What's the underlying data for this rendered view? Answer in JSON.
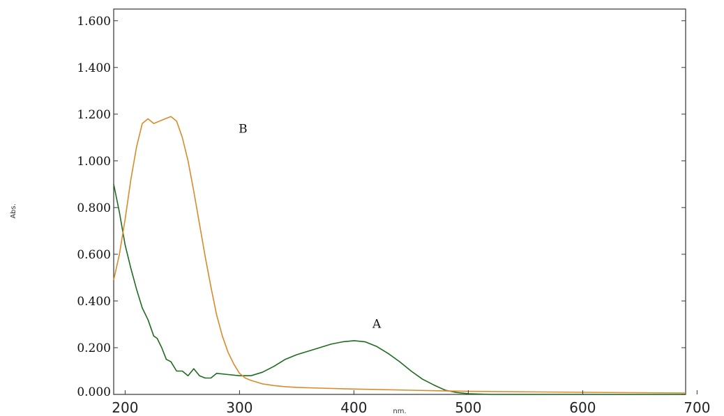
{
  "chart_data": {
    "type": "line",
    "title": "",
    "xlabel": "nm.",
    "ylabel": "Abs.",
    "xlim": [
      190,
      690
    ],
    "ylim": [
      0,
      1.65
    ],
    "x_ticks": [
      200,
      300,
      400,
      500,
      600,
      700
    ],
    "x_tick_labels": [
      "200",
      "300",
      "400",
      "500",
      "600",
      "700"
    ],
    "y_ticks": [
      0,
      0.2,
      0.4,
      0.6,
      0.8,
      1.0,
      1.2,
      1.4,
      1.6
    ],
    "y_tick_labels": [
      "0.000",
      "0.200",
      "0.400",
      "0.600",
      "0.800",
      "1.000",
      "1.200",
      "1.400",
      "1.600"
    ],
    "grid": false,
    "series": [
      {
        "name": "A",
        "color": "#1e6b1e",
        "x": [
          190,
          195,
          200,
          205,
          210,
          215,
          220,
          225,
          228,
          232,
          236,
          240,
          245,
          250,
          255,
          260,
          265,
          270,
          275,
          280,
          290,
          300,
          310,
          320,
          330,
          340,
          350,
          360,
          370,
          380,
          390,
          400,
          410,
          420,
          430,
          440,
          450,
          460,
          470,
          480,
          490,
          500,
          520,
          550,
          600,
          650,
          690
        ],
        "y": [
          0.9,
          0.78,
          0.64,
          0.54,
          0.45,
          0.37,
          0.32,
          0.25,
          0.24,
          0.2,
          0.15,
          0.14,
          0.1,
          0.1,
          0.08,
          0.11,
          0.08,
          0.07,
          0.07,
          0.09,
          0.085,
          0.08,
          0.08,
          0.095,
          0.12,
          0.15,
          0.17,
          0.185,
          0.2,
          0.215,
          0.225,
          0.23,
          0.225,
          0.205,
          0.175,
          0.14,
          0.1,
          0.065,
          0.04,
          0.018,
          0.008,
          0.003,
          0.0,
          0.0,
          0.0,
          0.0,
          0.0
        ]
      },
      {
        "name": "B",
        "color": "#d98a2b",
        "x": [
          190,
          195,
          200,
          205,
          210,
          215,
          220,
          225,
          230,
          235,
          240,
          245,
          250,
          255,
          260,
          265,
          270,
          275,
          280,
          285,
          290,
          295,
          300,
          305,
          310,
          320,
          330,
          340,
          350,
          370,
          400,
          450,
          500,
          600,
          690
        ],
        "y": [
          0.49,
          0.6,
          0.75,
          0.92,
          1.06,
          1.16,
          1.18,
          1.16,
          1.17,
          1.18,
          1.19,
          1.17,
          1.1,
          1.0,
          0.87,
          0.73,
          0.59,
          0.46,
          0.34,
          0.25,
          0.18,
          0.13,
          0.09,
          0.07,
          0.06,
          0.045,
          0.038,
          0.033,
          0.03,
          0.027,
          0.023,
          0.018,
          0.013,
          0.009,
          0.006
        ]
      }
    ],
    "annotations": [
      {
        "text": "A",
        "x": 420,
        "y": 0.285
      },
      {
        "text": "B",
        "x": 303,
        "y": 1.12
      }
    ]
  }
}
